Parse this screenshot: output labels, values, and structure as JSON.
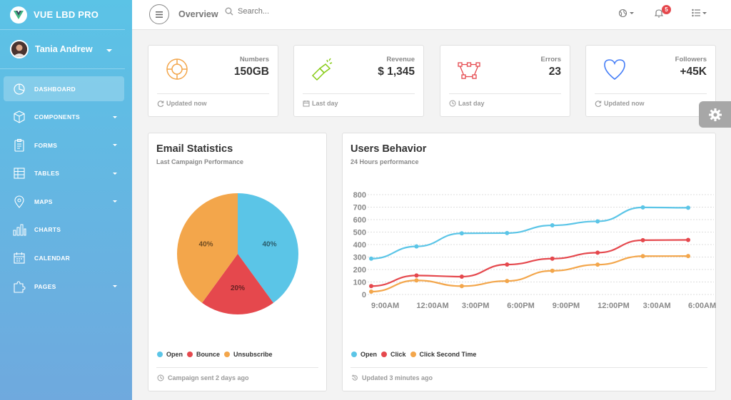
{
  "brand": {
    "name": "VUE LBD PRO"
  },
  "user": {
    "name": "Tania Andrew"
  },
  "sidebar": {
    "items": [
      {
        "label": "DASHBOARD",
        "icon": "pie-chart-icon",
        "active": true,
        "caret": false
      },
      {
        "label": "COMPONENTS",
        "icon": "cube-icon",
        "active": false,
        "caret": true
      },
      {
        "label": "FORMS",
        "icon": "clipboard-icon",
        "active": false,
        "caret": true
      },
      {
        "label": "TABLES",
        "icon": "table-icon",
        "active": false,
        "caret": true
      },
      {
        "label": "MAPS",
        "icon": "map-pin-icon",
        "active": false,
        "caret": true
      },
      {
        "label": "CHARTS",
        "icon": "bar-chart-icon",
        "active": false,
        "caret": false
      },
      {
        "label": "CALENDAR",
        "icon": "calendar-icon",
        "active": false,
        "caret": false
      },
      {
        "label": "PAGES",
        "icon": "puzzle-icon",
        "active": false,
        "caret": true
      }
    ]
  },
  "topbar": {
    "title": "Overview",
    "search_placeholder": "Search...",
    "notifications_count": "5"
  },
  "stats": [
    {
      "label": "Numbers",
      "value": "150GB",
      "footer": "Updated now",
      "icon": "target-icon",
      "footer_icon": "refresh-icon",
      "color": "#f3a64b"
    },
    {
      "label": "Revenue",
      "value": "$ 1,345",
      "footer": "Last day",
      "icon": "flashlight-icon",
      "footer_icon": "calendar-icon",
      "color": "#87cb16"
    },
    {
      "label": "Errors",
      "value": "23",
      "footer": "Last day",
      "icon": "vector-icon",
      "footer_icon": "clock-icon",
      "color": "#e5484d"
    },
    {
      "label": "Followers",
      "value": "+45K",
      "footer": "Updated now",
      "icon": "heart-icon",
      "footer_icon": "refresh-icon",
      "color": "#447df7"
    }
  ],
  "email_stats": {
    "title": "Email Statistics",
    "subtitle": "Last Campaign Performance",
    "footer": "Campaign sent 2 days ago"
  },
  "users_behavior": {
    "title": "Users Behavior",
    "subtitle": "24 Hours performance",
    "footer": "Updated 3 minutes ago"
  },
  "colors": {
    "open": "#5bc5e7",
    "click": "#e5484d",
    "second": "#f3a64b"
  },
  "chart_data": [
    {
      "type": "pie",
      "categories": [
        "Open",
        "Bounce",
        "Unsubscribe"
      ],
      "values": [
        40,
        20,
        40
      ],
      "data_labels": [
        "40%",
        "20%",
        "40%"
      ],
      "legend": [
        "Open",
        "Bounce",
        "Unsubscribe"
      ]
    },
    {
      "type": "line",
      "x": [
        "9:00AM",
        "12:00AM",
        "3:00PM",
        "6:00PM",
        "9:00PM",
        "12:00PM",
        "3:00AM",
        "6:00AM"
      ],
      "ylim": [
        0,
        800
      ],
      "yticks": [
        0,
        100,
        200,
        300,
        400,
        500,
        600,
        700,
        800
      ],
      "grid": true,
      "series": [
        {
          "name": "Open",
          "values": [
            287,
            385,
            490,
            492,
            554,
            586,
            698,
            695
          ]
        },
        {
          "name": "Click",
          "values": [
            67,
            152,
            143,
            240,
            287,
            335,
            435,
            437
          ]
        },
        {
          "name": "Click Second Time",
          "values": [
            23,
            113,
            67,
            108,
            190,
            239,
            307,
            308
          ]
        }
      ]
    }
  ]
}
